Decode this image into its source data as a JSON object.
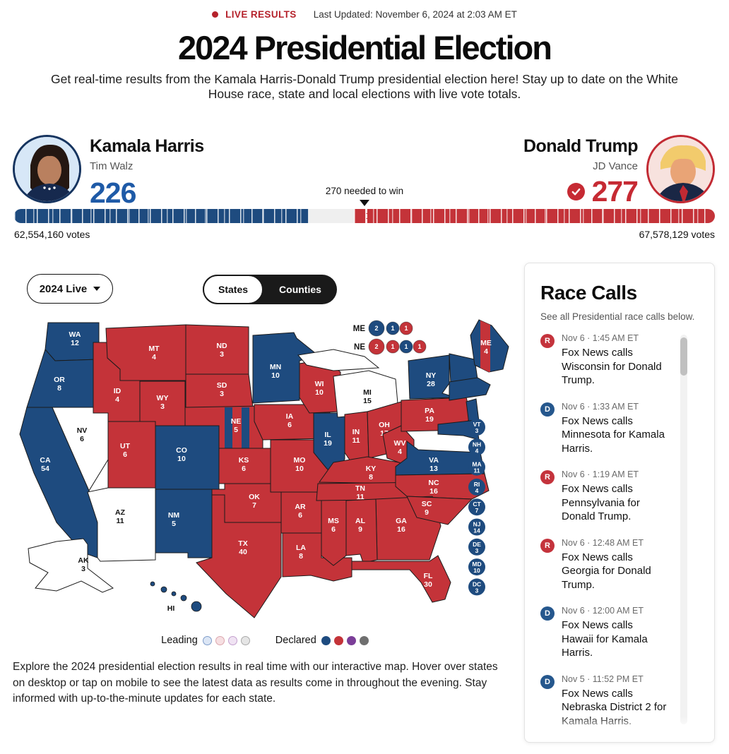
{
  "header": {
    "live_label": "LIVE RESULTS",
    "last_updated": "Last Updated: November 6, 2024 at 2:03 AM ET",
    "title": "2024 Presidential Election",
    "subtitle": "Get real-time results from the Kamala Harris-Donald Trump presidential election here! Stay up to date on the White House race, state and local elections with live vote totals."
  },
  "scoreboard": {
    "needed_label": "270 needed to win",
    "total_ev": 538,
    "needed_ev": 270,
    "harris": {
      "name": "Kamala Harris",
      "running_mate": "Tim Walz",
      "electoral_votes": 226,
      "votes_label": "62,554,160 votes",
      "color": "#1E4B7F"
    },
    "trump": {
      "name": "Donald Trump",
      "running_mate": "JD Vance",
      "electoral_votes": 277,
      "votes_label": "67,578,129 votes",
      "color": "#C43339",
      "winner_check": true
    }
  },
  "controls": {
    "year_selector": "2024 Live",
    "view_toggle": {
      "options": [
        "States",
        "Counties"
      ],
      "selected": "States"
    }
  },
  "map": {
    "colors": {
      "dem": "#1E4B7F",
      "gop": "#C43339",
      "uncalled": "#FFFFFF"
    },
    "states": [
      {
        "id": "WA",
        "ev": 12,
        "status": "dem"
      },
      {
        "id": "OR",
        "ev": 8,
        "status": "dem"
      },
      {
        "id": "CA",
        "ev": 54,
        "status": "dem"
      },
      {
        "id": "NV",
        "ev": 6,
        "status": "uncalled"
      },
      {
        "id": "ID",
        "ev": 4,
        "status": "gop"
      },
      {
        "id": "MT",
        "ev": 4,
        "status": "gop"
      },
      {
        "id": "WY",
        "ev": 3,
        "status": "gop"
      },
      {
        "id": "UT",
        "ev": 6,
        "status": "gop"
      },
      {
        "id": "AZ",
        "ev": 11,
        "status": "uncalled"
      },
      {
        "id": "CO",
        "ev": 10,
        "status": "dem"
      },
      {
        "id": "NM",
        "ev": 5,
        "status": "dem"
      },
      {
        "id": "ND",
        "ev": 3,
        "status": "gop"
      },
      {
        "id": "SD",
        "ev": 3,
        "status": "gop"
      },
      {
        "id": "NE",
        "ev": 5,
        "status": "gop",
        "stripe": "dem"
      },
      {
        "id": "KS",
        "ev": 6,
        "status": "gop"
      },
      {
        "id": "OK",
        "ev": 7,
        "status": "gop"
      },
      {
        "id": "TX",
        "ev": 40,
        "status": "gop"
      },
      {
        "id": "MN",
        "ev": 10,
        "status": "dem"
      },
      {
        "id": "IA",
        "ev": 6,
        "status": "gop"
      },
      {
        "id": "MO",
        "ev": 10,
        "status": "gop"
      },
      {
        "id": "AR",
        "ev": 6,
        "status": "gop"
      },
      {
        "id": "LA",
        "ev": 8,
        "status": "gop"
      },
      {
        "id": "WI",
        "ev": 10,
        "status": "gop"
      },
      {
        "id": "IL",
        "ev": 19,
        "status": "dem"
      },
      {
        "id": "MS",
        "ev": 6,
        "status": "gop"
      },
      {
        "id": "MIUP",
        "status": "uncalled",
        "label": false
      },
      {
        "id": "MI",
        "ev": 15,
        "status": "uncalled"
      },
      {
        "id": "IN",
        "ev": 11,
        "status": "gop"
      },
      {
        "id": "OH",
        "ev": 17,
        "status": "gop"
      },
      {
        "id": "KY",
        "ev": 8,
        "status": "gop"
      },
      {
        "id": "TN",
        "ev": 11,
        "status": "gop"
      },
      {
        "id": "WV",
        "ev": 4,
        "status": "gop"
      },
      {
        "id": "VA",
        "ev": 13,
        "status": "dem"
      },
      {
        "id": "NC",
        "ev": 16,
        "status": "gop"
      },
      {
        "id": "GA",
        "ev": 16,
        "status": "gop"
      },
      {
        "id": "SC",
        "ev": 9,
        "status": "gop"
      },
      {
        "id": "AL",
        "ev": 9,
        "status": "gop"
      },
      {
        "id": "FL",
        "ev": 30,
        "status": "gop"
      },
      {
        "id": "PA",
        "ev": 19,
        "status": "gop"
      },
      {
        "id": "NY",
        "ev": 28,
        "status": "dem"
      },
      {
        "id": "VTNH",
        "status": "dem",
        "label": false
      },
      {
        "id": "MACTRI",
        "status": "dem",
        "label": false
      },
      {
        "id": "NJ",
        "status": "dem",
        "label": false
      },
      {
        "id": "MDDE",
        "status": "dem",
        "label": false
      },
      {
        "id": "ME",
        "ev": 4,
        "status": "dem",
        "stripe": "gop"
      },
      {
        "id": "AK",
        "ev": 3,
        "status": "uncalled"
      },
      {
        "id": "HI",
        "status": "dem"
      }
    ],
    "split_rows": [
      {
        "state": "ME",
        "dots": [
          {
            "ev": 2,
            "party": "dem"
          },
          {
            "ev": 1,
            "party": "dem"
          },
          {
            "ev": 1,
            "party": "gop"
          }
        ]
      },
      {
        "state": "NE",
        "dots": [
          {
            "ev": 2,
            "party": "gop"
          },
          {
            "ev": 1,
            "party": "gop"
          },
          {
            "ev": 1,
            "party": "dem"
          },
          {
            "ev": 1,
            "party": "gop"
          }
        ]
      }
    ],
    "east_labels": [
      {
        "abbr": "VT",
        "ev": 3,
        "status": "dem"
      },
      {
        "abbr": "NH",
        "ev": 4,
        "status": "dem"
      },
      {
        "abbr": "MA",
        "ev": 11,
        "status": "dem"
      },
      {
        "abbr": "RI",
        "ev": 4,
        "status": "dem"
      },
      {
        "abbr": "CT",
        "ev": 7,
        "status": "dem"
      },
      {
        "abbr": "NJ",
        "ev": 14,
        "status": "dem"
      },
      {
        "abbr": "DE",
        "ev": 3,
        "status": "dem"
      },
      {
        "abbr": "MD",
        "ev": 10,
        "status": "dem"
      },
      {
        "abbr": "DC",
        "ev": 3,
        "status": "dem"
      }
    ],
    "legend": {
      "leading_label": "Leading",
      "declared_label": "Declared",
      "leading_swatches": [
        {
          "fill": "#DCE6F5",
          "border": "#7E9CC9"
        },
        {
          "fill": "#F6DFE2",
          "border": "#DCA6AD"
        },
        {
          "fill": "#F0E3F3",
          "border": "#C4A0CE"
        },
        {
          "fill": "#E5E5E5",
          "border": "#A9A9A9"
        }
      ],
      "declared_swatches": [
        "#1E4B7F",
        "#C43339",
        "#7B3E98",
        "#6F6F6F"
      ]
    }
  },
  "description": "Explore the 2024 presidential election results in real time with our interactive map. Hover over states on desktop or tap on mobile to see the latest data as results come in throughout the evening. Stay informed with up-to-the-minute updates for each state.",
  "race_calls": {
    "title": "Race Calls",
    "subtitle": "See all Presidential race calls below.",
    "items": [
      {
        "party": "R",
        "time": "Nov 6 · 1:45 AM ET",
        "text": "Fox News calls Wisconsin for Donald Trump."
      },
      {
        "party": "D",
        "time": "Nov 6 · 1:33 AM ET",
        "text": "Fox News calls Minnesota for Kamala Harris."
      },
      {
        "party": "R",
        "time": "Nov 6 · 1:19 AM ET",
        "text": "Fox News calls Pennsylvania for Donald Trump."
      },
      {
        "party": "R",
        "time": "Nov 6 · 12:48 AM ET",
        "text": "Fox News calls Georgia for Donald Trump."
      },
      {
        "party": "D",
        "time": "Nov 6 · 12:00 AM ET",
        "text": "Fox News calls Hawaii for Kamala Harris."
      },
      {
        "party": "D",
        "time": "Nov 5 · 11:52 PM ET",
        "text": "Fox News calls Nebraska District 2 for Kamala Harris."
      }
    ]
  }
}
